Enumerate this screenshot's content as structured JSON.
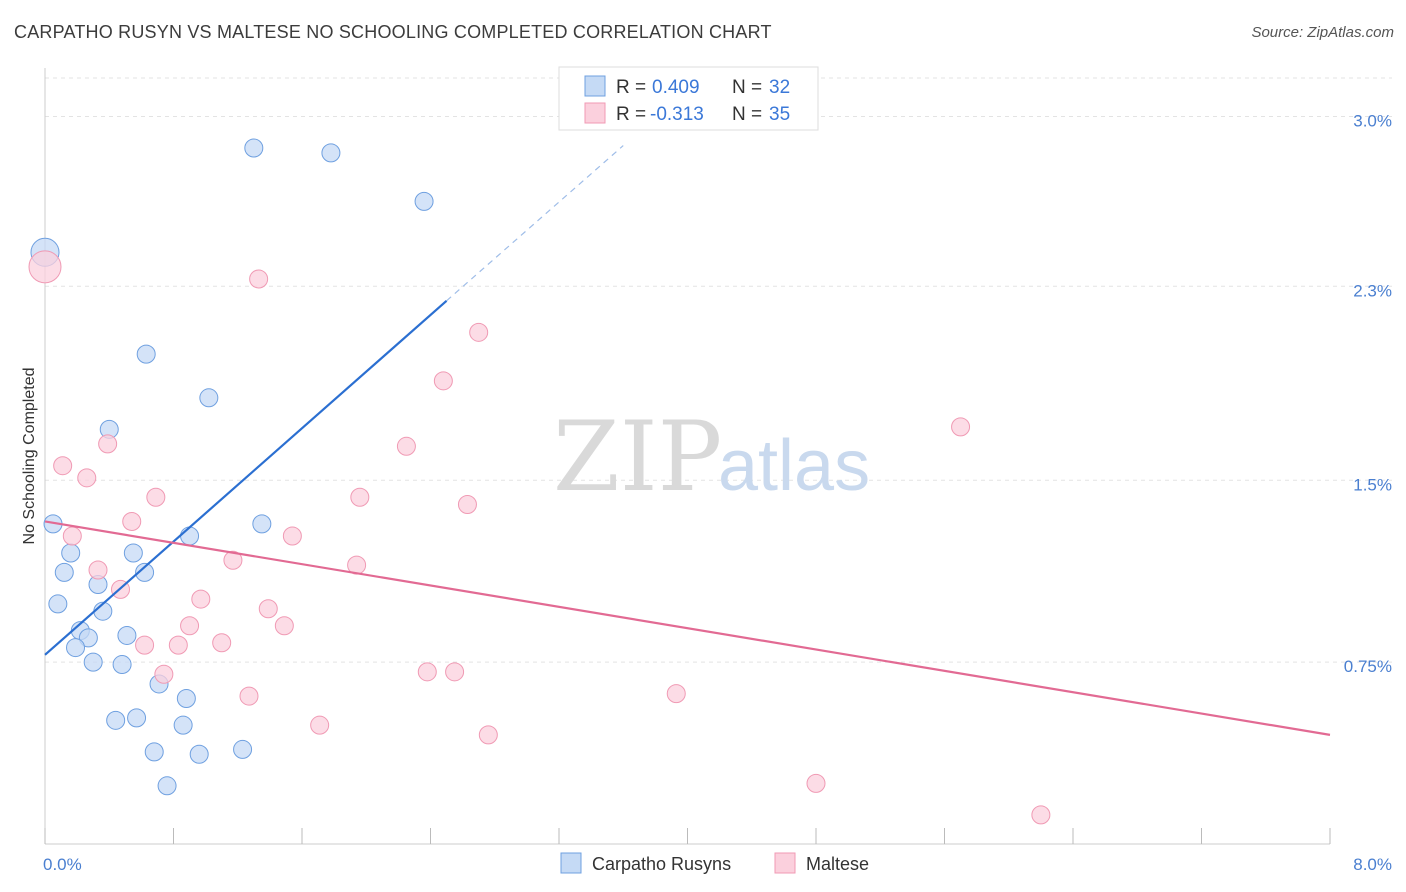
{
  "title": "CARPATHO RUSYN VS MALTESE NO SCHOOLING COMPLETED CORRELATION CHART",
  "source": "Source: ZipAtlas.com",
  "watermark": {
    "zip": "ZIP",
    "atlas": "atlas"
  },
  "chart_data": {
    "type": "scatter",
    "ylabel": "No Schooling Completed",
    "xlim": [
      0,
      8.0
    ],
    "ylim": [
      0,
      3.2
    ],
    "x_tick_labels": [
      {
        "value": 0,
        "label": "0.0%"
      },
      {
        "value": 8.0,
        "label": "8.0%"
      }
    ],
    "y_tick_labels": [
      {
        "value": 0.75,
        "label": "0.75%"
      },
      {
        "value": 1.5,
        "label": "1.5%"
      },
      {
        "value": 2.3,
        "label": "2.3%"
      },
      {
        "value": 3.0,
        "label": "3.0%"
      }
    ],
    "legend": [
      {
        "r_label": "R = ",
        "r_value": "0.409",
        "n_label": "N = ",
        "n_value": "32"
      },
      {
        "r_label": "R = ",
        "r_value": "-0.313",
        "n_label": "N = ",
        "n_value": "35"
      }
    ],
    "series": [
      {
        "name": "Carpatho Rusyns",
        "color": "#6fa0e0",
        "fill": "#c5daf5",
        "trend_color": "#2b6fd1",
        "trend": {
          "x0": 0.0,
          "y0": 0.78,
          "x1": 2.5,
          "y1": 2.24,
          "dash_x1": 3.6,
          "dash_y1": 2.88
        },
        "points": [
          [
            0.0,
            2.44,
            14
          ],
          [
            1.3,
            2.87,
            9
          ],
          [
            1.78,
            2.85,
            9
          ],
          [
            2.36,
            2.65,
            9
          ],
          [
            0.63,
            2.02,
            9
          ],
          [
            1.02,
            1.84,
            9
          ],
          [
            0.4,
            1.71,
            9
          ],
          [
            0.05,
            1.32,
            9
          ],
          [
            0.9,
            1.27,
            9
          ],
          [
            1.35,
            1.32,
            9
          ],
          [
            0.16,
            1.2,
            9
          ],
          [
            0.55,
            1.2,
            9
          ],
          [
            0.12,
            1.12,
            9
          ],
          [
            0.62,
            1.12,
            9
          ],
          [
            0.33,
            1.07,
            9
          ],
          [
            0.08,
            0.99,
            9
          ],
          [
            0.36,
            0.96,
            9
          ],
          [
            0.22,
            0.88,
            9
          ],
          [
            0.27,
            0.85,
            9
          ],
          [
            0.51,
            0.86,
            9
          ],
          [
            0.19,
            0.81,
            9
          ],
          [
            0.3,
            0.75,
            9
          ],
          [
            0.48,
            0.74,
            9
          ],
          [
            0.71,
            0.66,
            9
          ],
          [
            0.88,
            0.6,
            9
          ],
          [
            0.44,
            0.51,
            9
          ],
          [
            0.57,
            0.52,
            9
          ],
          [
            0.86,
            0.49,
            9
          ],
          [
            0.68,
            0.38,
            9
          ],
          [
            0.96,
            0.37,
            9
          ],
          [
            1.23,
            0.39,
            9
          ],
          [
            0.76,
            0.24,
            9
          ]
        ]
      },
      {
        "name": "Maltese",
        "color": "#f09ab4",
        "fill": "#fbd0dd",
        "trend_color": "#e26a93",
        "trend": {
          "x0": 0.0,
          "y0": 1.33,
          "x1": 8.0,
          "y1": 0.45
        },
        "points": [
          [
            0.0,
            2.38,
            16
          ],
          [
            1.33,
            2.33,
            9
          ],
          [
            2.7,
            2.11,
            9
          ],
          [
            2.48,
            1.91,
            9
          ],
          [
            5.7,
            1.72,
            9
          ],
          [
            0.39,
            1.65,
            9
          ],
          [
            2.25,
            1.64,
            9
          ],
          [
            0.11,
            1.56,
            9
          ],
          [
            0.26,
            1.51,
            9
          ],
          [
            0.69,
            1.43,
            9
          ],
          [
            1.96,
            1.43,
            9
          ],
          [
            2.63,
            1.4,
            9
          ],
          [
            0.54,
            1.33,
            9
          ],
          [
            0.17,
            1.27,
            9
          ],
          [
            1.54,
            1.27,
            9
          ],
          [
            1.17,
            1.17,
            9
          ],
          [
            1.94,
            1.15,
            9
          ],
          [
            0.33,
            1.13,
            9
          ],
          [
            0.47,
            1.05,
            9
          ],
          [
            0.97,
            1.01,
            9
          ],
          [
            1.39,
            0.97,
            9
          ],
          [
            0.9,
            0.9,
            9
          ],
          [
            1.49,
            0.9,
            9
          ],
          [
            0.62,
            0.82,
            9
          ],
          [
            0.83,
            0.82,
            9
          ],
          [
            1.1,
            0.83,
            9
          ],
          [
            0.74,
            0.7,
            9
          ],
          [
            2.38,
            0.71,
            9
          ],
          [
            2.55,
            0.71,
            9
          ],
          [
            1.27,
            0.61,
            9
          ],
          [
            3.93,
            0.62,
            9
          ],
          [
            1.71,
            0.49,
            9
          ],
          [
            2.76,
            0.45,
            9
          ],
          [
            4.8,
            0.25,
            9
          ],
          [
            6.2,
            0.12,
            9
          ]
        ]
      }
    ]
  }
}
